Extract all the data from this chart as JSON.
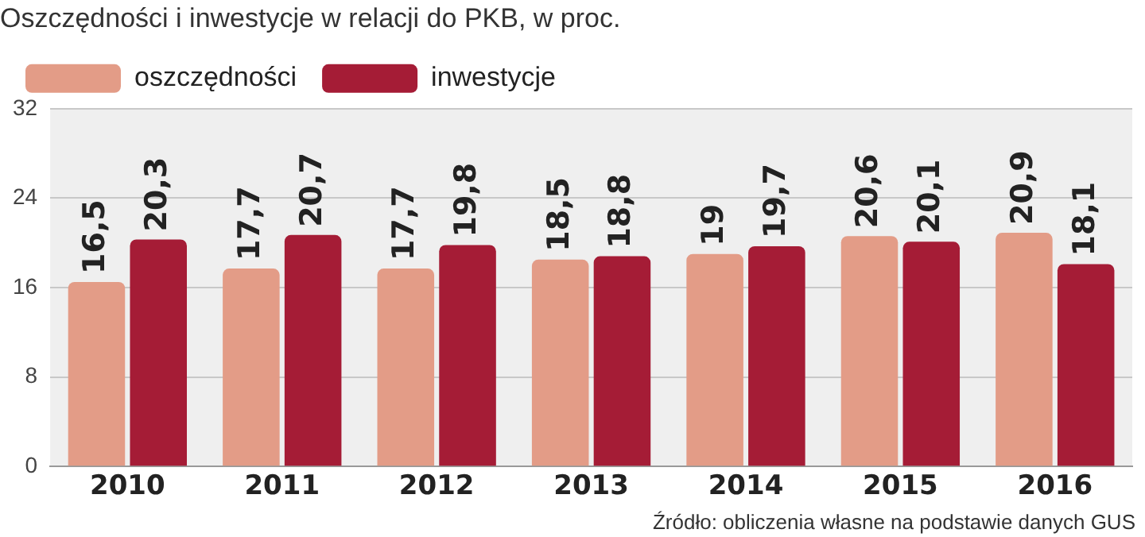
{
  "chart_data": {
    "type": "bar",
    "title": "Oszczędności i inwestycje w relacji do PKB, w proc.",
    "categories": [
      "2010",
      "2011",
      "2012",
      "2013",
      "2014",
      "2015",
      "2016"
    ],
    "series": [
      {
        "name": "oszczędności",
        "color": "#e39c87",
        "values": [
          16.5,
          17.7,
          17.7,
          18.5,
          19,
          20.6,
          20.9
        ],
        "value_labels": [
          "16,5",
          "17,7",
          "17,7",
          "18,5",
          "19",
          "20,6",
          "20,9"
        ]
      },
      {
        "name": "inwestycje",
        "color": "#a51c36",
        "values": [
          20.3,
          20.7,
          19.8,
          18.8,
          19.7,
          20.1,
          18.1
        ],
        "value_labels": [
          "20,3",
          "20,7",
          "19,8",
          "18,8",
          "19,7",
          "20,1",
          "18,1"
        ]
      }
    ],
    "ylim": [
      0,
      32
    ],
    "yticks": [
      0,
      8,
      16,
      24,
      32
    ],
    "grid": "y",
    "legend": "top left",
    "annotations": [
      "Źródło: obliczenia własne na podstawie danych GUS"
    ]
  }
}
